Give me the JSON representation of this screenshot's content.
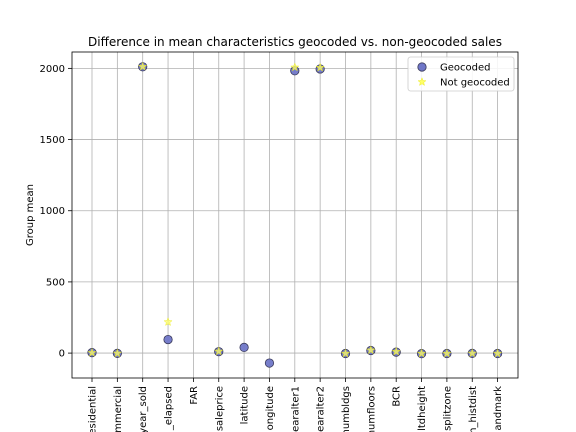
{
  "chart_data": {
    "type": "scatter",
    "title": "Difference in mean characteristics geocoded vs. non-geocoded sales",
    "xlabel": "",
    "ylabel": "Group mean",
    "ylim": [
      -175,
      2115
    ],
    "yticks": [
      0,
      500,
      1000,
      1500,
      2000
    ],
    "grid": true,
    "legend_position": "top-right",
    "categories": [
      "esidential",
      "mmercial",
      "year_sold",
      "_elapsed",
      "FAR",
      "saleprice",
      "latitude",
      "ongitude",
      "earalter1",
      "earalter2",
      "numbldgs",
      "numfloors",
      "BCR",
      "ltdheight",
      "splitzone",
      "n_histdist",
      "andmark"
    ],
    "series": [
      {
        "name": "Geocoded",
        "color": "#7077c8",
        "edge_color": "#3a3a5a",
        "marker": "circle",
        "values": [
          3,
          -2,
          2011,
          95,
          null,
          10,
          40,
          -70,
          1983,
          1996,
          -3,
          18,
          7,
          -4,
          -3,
          -2,
          -3
        ]
      },
      {
        "name": "Not geocoded",
        "color": "#ffff66",
        "edge_color": "#e6e600",
        "marker": "star",
        "values": [
          2,
          -2,
          2012,
          218,
          null,
          12,
          null,
          null,
          2007,
          2005,
          -3,
          20,
          10,
          -3,
          -3,
          -2,
          -3
        ]
      }
    ]
  }
}
